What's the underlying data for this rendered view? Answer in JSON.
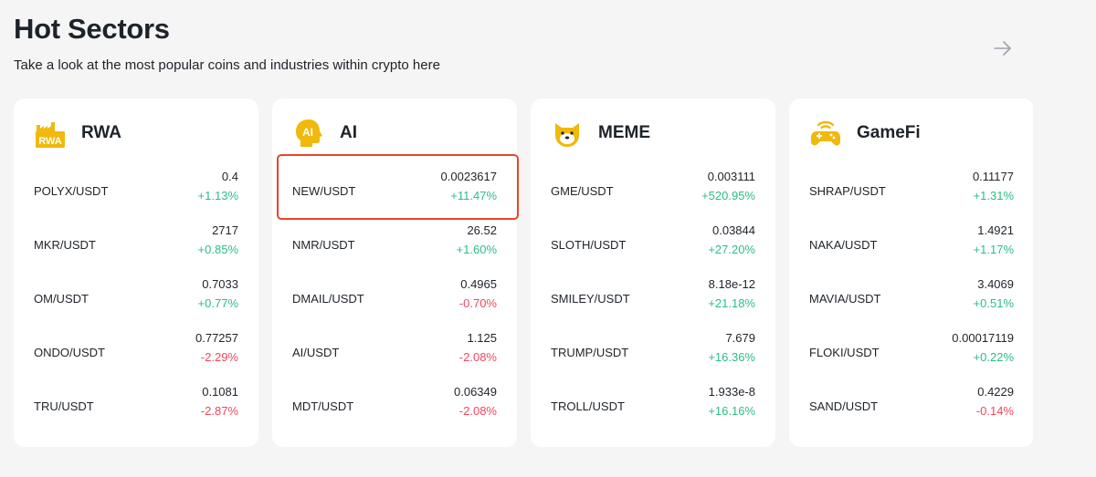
{
  "header": {
    "title": "Hot Sectors",
    "subtitle": "Take a look at the most popular coins and industries within crypto here"
  },
  "colors": {
    "up": "#2ebd85",
    "down": "#f6465d",
    "accent": "#f0b90b",
    "highlight": "#e8452c"
  },
  "sectors": [
    {
      "name": "RWA",
      "icon": "rwa-factory-icon",
      "rows": [
        {
          "pair": "POLYX/USDT",
          "price": "0.4",
          "change": "+1.13%",
          "dir": "up"
        },
        {
          "pair": "MKR/USDT",
          "price": "2717",
          "change": "+0.85%",
          "dir": "up"
        },
        {
          "pair": "OM/USDT",
          "price": "0.7033",
          "change": "+0.77%",
          "dir": "up"
        },
        {
          "pair": "ONDO/USDT",
          "price": "0.77257",
          "change": "-2.29%",
          "dir": "down"
        },
        {
          "pair": "TRU/USDT",
          "price": "0.1081",
          "change": "-2.87%",
          "dir": "down"
        }
      ]
    },
    {
      "name": "AI",
      "icon": "ai-head-icon",
      "rows": [
        {
          "pair": "NEW/USDT",
          "price": "0.0023617",
          "change": "+11.47%",
          "dir": "up"
        },
        {
          "pair": "NMR/USDT",
          "price": "26.52",
          "change": "+1.60%",
          "dir": "up"
        },
        {
          "pair": "DMAIL/USDT",
          "price": "0.4965",
          "change": "-0.70%",
          "dir": "down"
        },
        {
          "pair": "AI/USDT",
          "price": "1.125",
          "change": "-2.08%",
          "dir": "down"
        },
        {
          "pair": "MDT/USDT",
          "price": "0.06349",
          "change": "-2.08%",
          "dir": "down"
        }
      ]
    },
    {
      "name": "MEME",
      "icon": "doge-icon",
      "rows": [
        {
          "pair": "GME/USDT",
          "price": "0.003111",
          "change": "+520.95%",
          "dir": "up"
        },
        {
          "pair": "SLOTH/USDT",
          "price": "0.03844",
          "change": "+27.20%",
          "dir": "up"
        },
        {
          "pair": "SMILEY/USDT",
          "price": "8.18e-12",
          "change": "+21.18%",
          "dir": "up"
        },
        {
          "pair": "TRUMP/USDT",
          "price": "7.679",
          "change": "+16.36%",
          "dir": "up"
        },
        {
          "pair": "TROLL/USDT",
          "price": "1.933e-8",
          "change": "+16.16%",
          "dir": "up"
        }
      ]
    },
    {
      "name": "GameFi",
      "icon": "gamepad-icon",
      "rows": [
        {
          "pair": "SHRAP/USDT",
          "price": "0.11177",
          "change": "+1.31%",
          "dir": "up"
        },
        {
          "pair": "NAKA/USDT",
          "price": "1.4921",
          "change": "+1.17%",
          "dir": "up"
        },
        {
          "pair": "MAVIA/USDT",
          "price": "3.4069",
          "change": "+0.51%",
          "dir": "up"
        },
        {
          "pair": "FLOKI/USDT",
          "price": "0.00017119",
          "change": "+0.22%",
          "dir": "up"
        },
        {
          "pair": "SAND/USDT",
          "price": "0.4229",
          "change": "-0.14%",
          "dir": "down"
        }
      ]
    }
  ]
}
